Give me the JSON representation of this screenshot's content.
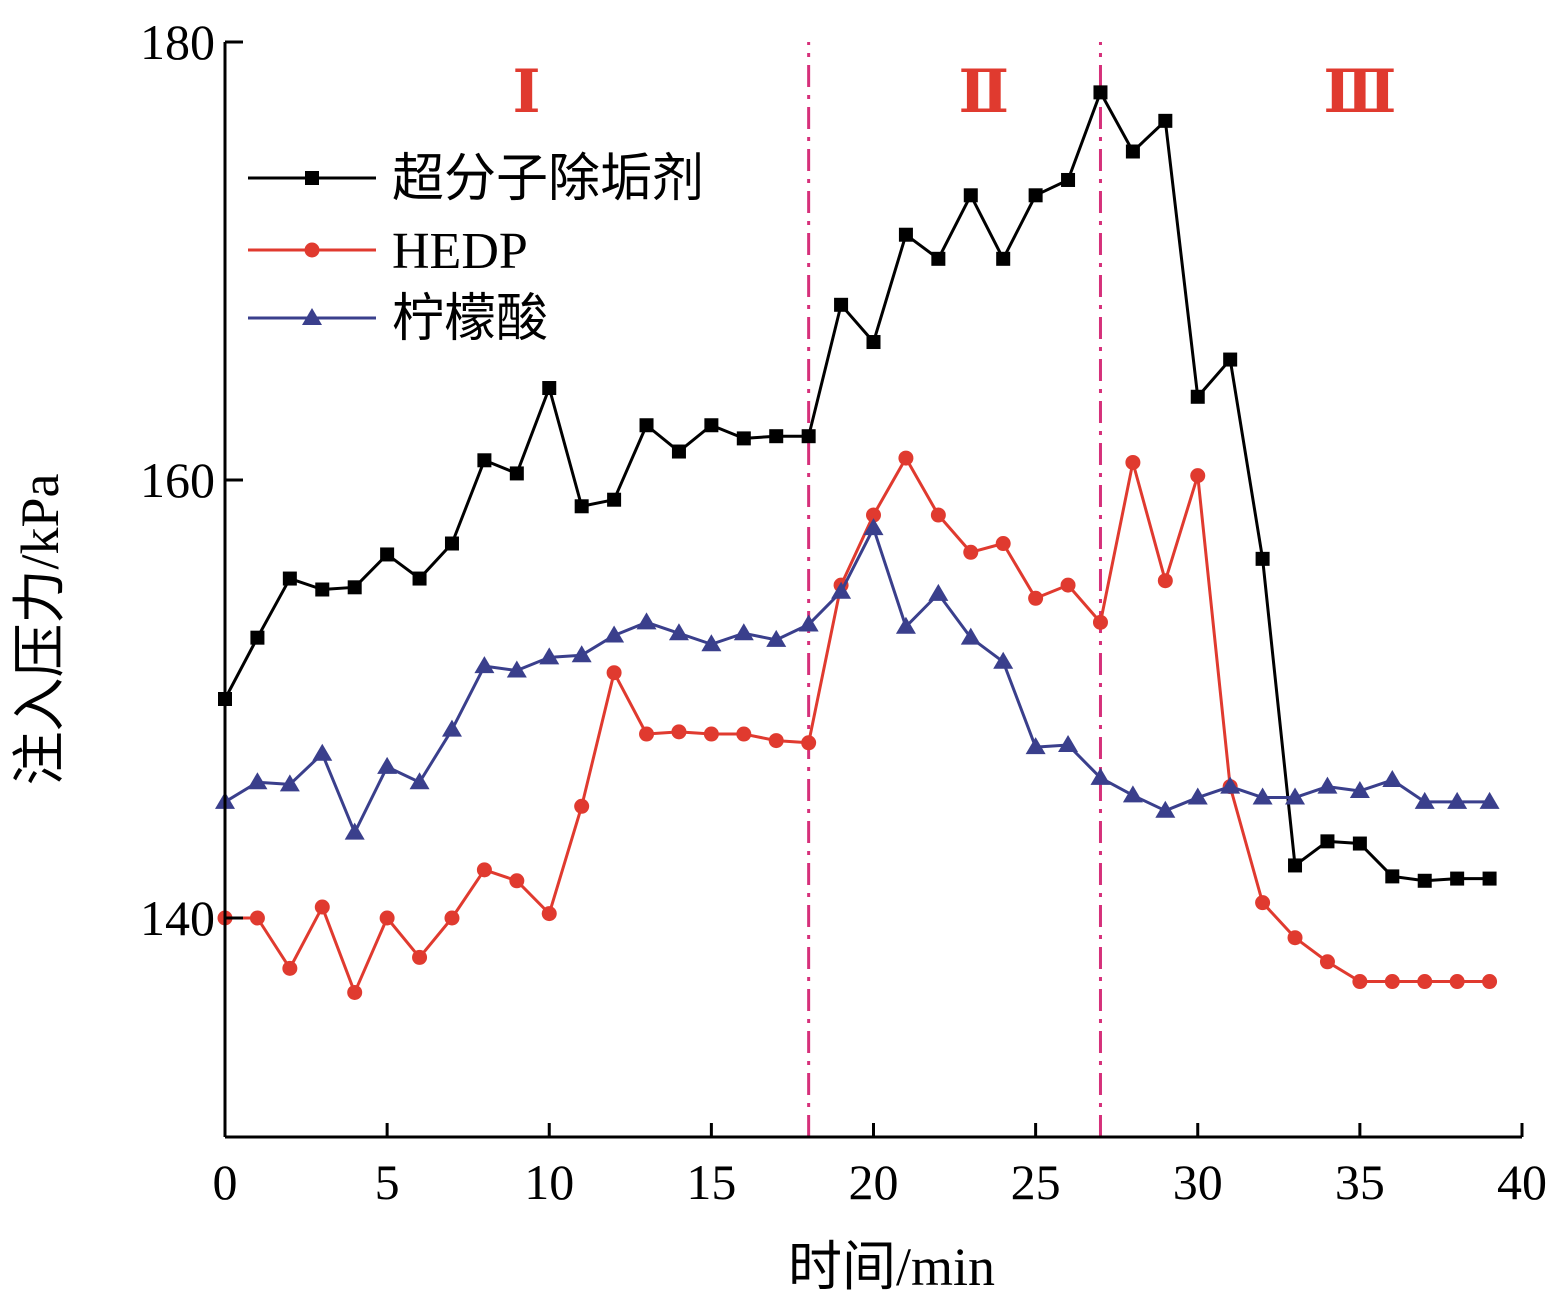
{
  "chart_data": {
    "type": "line",
    "xlabel": "时间/min",
    "ylabel": "注入压力/kPa",
    "xlim": [
      0,
      40
    ],
    "ylim": [
      130,
      180
    ],
    "xticks": [
      0,
      5,
      10,
      15,
      20,
      25,
      30,
      35,
      40
    ],
    "yticks": [
      140,
      160,
      180
    ],
    "grid": false,
    "legend": "top-left",
    "stage_dividers": {
      "x": [
        18,
        27
      ],
      "color": "#d6307a",
      "style": "dash-dot"
    },
    "stage_labels": [
      {
        "text": "Ⅰ",
        "x": 9.3,
        "color": "#e03a2f"
      },
      {
        "text": "Ⅱ",
        "x": 23.4,
        "color": "#e03a2f"
      },
      {
        "text": "Ⅲ",
        "x": 35.0,
        "color": "#e03a2f"
      }
    ],
    "series": [
      {
        "name": "超分子除垢剂",
        "color": "#000000",
        "marker": "square",
        "x": [
          0,
          1,
          2,
          3,
          4,
          5,
          6,
          7,
          8,
          9,
          10,
          11,
          12,
          13,
          14,
          15,
          16,
          17,
          18,
          19,
          20,
          21,
          22,
          23,
          24,
          25,
          26,
          27,
          28,
          29,
          30,
          31,
          32,
          33,
          34,
          35,
          36,
          37,
          38,
          39
        ],
        "y": [
          150.0,
          152.8,
          155.5,
          155.0,
          155.1,
          156.6,
          155.5,
          157.1,
          160.9,
          160.3,
          164.2,
          158.8,
          159.1,
          162.5,
          161.3,
          162.5,
          161.9,
          162.0,
          162.0,
          168.0,
          166.3,
          171.2,
          170.1,
          173.0,
          170.1,
          173.0,
          173.7,
          177.7,
          175.0,
          176.4,
          163.8,
          165.5,
          156.4,
          142.4,
          143.5,
          143.4,
          141.9,
          141.7,
          141.8,
          141.8
        ]
      },
      {
        "name": "HEDP",
        "color": "#e03a2f",
        "marker": "circle",
        "x": [
          0,
          1,
          2,
          3,
          4,
          5,
          6,
          7,
          8,
          9,
          10,
          11,
          12,
          13,
          14,
          15,
          16,
          17,
          18,
          19,
          20,
          21,
          22,
          23,
          24,
          25,
          26,
          27,
          28,
          29,
          30,
          31,
          32,
          33,
          34,
          35,
          36,
          37,
          38,
          39
        ],
        "y": [
          140.0,
          140.0,
          137.7,
          140.5,
          136.6,
          140.0,
          138.2,
          140.0,
          142.2,
          141.7,
          140.2,
          145.1,
          151.2,
          148.4,
          148.5,
          148.4,
          148.4,
          148.1,
          148.0,
          155.2,
          158.4,
          161.0,
          158.4,
          156.7,
          157.1,
          154.6,
          155.2,
          153.5,
          160.8,
          155.4,
          160.2,
          146.0,
          140.7,
          139.1,
          138.0,
          137.1,
          137.1,
          137.1,
          137.1,
          137.1
        ]
      },
      {
        "name": "柠檬酸",
        "color": "#3a3f8c",
        "marker": "triangle",
        "x": [
          0,
          1,
          2,
          3,
          4,
          5,
          6,
          7,
          8,
          9,
          10,
          11,
          12,
          13,
          14,
          15,
          16,
          17,
          18,
          19,
          20,
          21,
          22,
          23,
          24,
          25,
          26,
          27,
          28,
          29,
          30,
          31,
          32,
          33,
          34,
          35,
          36,
          37,
          38,
          39
        ],
        "y": [
          145.3,
          146.2,
          146.1,
          147.5,
          143.9,
          146.9,
          146.2,
          148.6,
          151.5,
          151.3,
          151.9,
          152.0,
          152.9,
          153.5,
          153.0,
          152.5,
          153.0,
          152.7,
          153.4,
          154.9,
          157.8,
          153.3,
          154.8,
          152.8,
          151.7,
          147.8,
          147.9,
          146.4,
          145.6,
          144.9,
          145.5,
          146.0,
          145.5,
          145.5,
          146.0,
          145.8,
          146.3,
          145.3,
          145.3,
          145.3
        ]
      }
    ]
  }
}
